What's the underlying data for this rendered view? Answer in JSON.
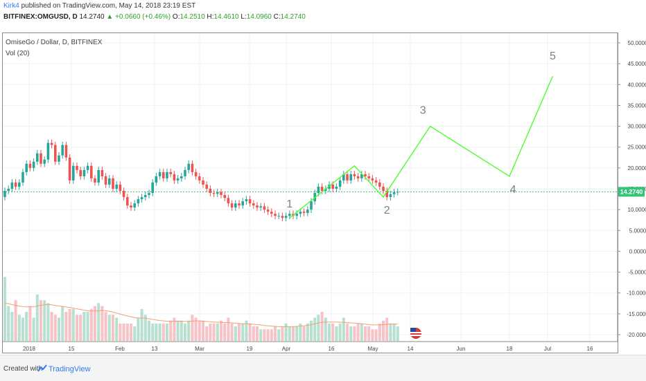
{
  "header": {
    "author": "Kirk4",
    "published": "published on TradingView.com, May 14, 2018 23:19 EST",
    "symbol": "BITFINEX:OMGUSD, D",
    "last": "14.2740",
    "change_arrow": "▲",
    "change": "+0.0660 (+0.46%)",
    "o_label": "O:",
    "o": "14.2510",
    "h_label": "H:",
    "h": "14.4610",
    "l_label": "L:",
    "l": "14.0960",
    "c_label": "C:",
    "c": "14.2740"
  },
  "legend": {
    "series": "OmiseGo / Dollar, D, BITFINEX",
    "indicator": "Vol (20)"
  },
  "footer": {
    "created_with": "Created with",
    "brand": "TradingView"
  },
  "colors": {
    "up": "#26a69a",
    "down": "#ef5350",
    "wave": "#4cff2e",
    "ma": "#f0a070",
    "grid": "#eef1f4",
    "axis_text": "#444444",
    "wave_label": "#7a7f86",
    "price_tag": "#33c47a"
  },
  "chart_data": {
    "type": "candlestick",
    "y_axis": {
      "ticks": [
        "50.0000",
        "45.0000",
        "40.0000",
        "35.0000",
        "30.0000",
        "25.0000",
        "20.0000",
        "15.0000",
        "10.0000",
        "5.0000",
        "0.0000",
        "-5.0000",
        "-10.0000",
        "-15.0000",
        "-20.0000"
      ],
      "range": [
        -20,
        50
      ]
    },
    "x_axis": {
      "ticks": [
        "2018",
        "15",
        "Feb",
        "13",
        "Mar",
        "19",
        "Apr",
        "16",
        "May",
        "14",
        "Jun",
        "18",
        "Jul",
        "16"
      ]
    },
    "current_price": "14.2740",
    "price_line": 14.274,
    "candles": [
      [
        13.0,
        14.5
      ],
      [
        14.5,
        15.0
      ],
      [
        15.0,
        16.5
      ],
      [
        16.5,
        15.5
      ],
      [
        15.5,
        16.5
      ],
      [
        16.5,
        19.0
      ],
      [
        19.0,
        21.0
      ],
      [
        21.0,
        20.0
      ],
      [
        20.0,
        21.5
      ],
      [
        21.5,
        23.5
      ],
      [
        23.5,
        21.0
      ],
      [
        21.0,
        22.0
      ],
      [
        22.0,
        26.0
      ],
      [
        26.0,
        25.5
      ],
      [
        25.5,
        21.5
      ],
      [
        21.5,
        23.0
      ],
      [
        23.0,
        25.5
      ],
      [
        25.5,
        22.5
      ],
      [
        22.5,
        17.0
      ],
      [
        17.0,
        20.5
      ],
      [
        20.5,
        19.5
      ],
      [
        19.5,
        18.0
      ],
      [
        18.0,
        19.5
      ],
      [
        19.5,
        20.5
      ],
      [
        20.5,
        17.5
      ],
      [
        17.5,
        16.5
      ],
      [
        16.5,
        19.5
      ],
      [
        19.5,
        18.0
      ],
      [
        18.0,
        16.0
      ],
      [
        16.0,
        17.5
      ],
      [
        17.5,
        15.0
      ],
      [
        15.0,
        16.0
      ],
      [
        16.0,
        14.5
      ],
      [
        14.5,
        13.0
      ],
      [
        13.0,
        11.0
      ],
      [
        11.0,
        10.5
      ],
      [
        10.5,
        11.5
      ],
      [
        11.5,
        12.5
      ],
      [
        12.5,
        13.0
      ],
      [
        13.0,
        13.5
      ],
      [
        13.5,
        14.0
      ],
      [
        14.0,
        16.5
      ],
      [
        16.5,
        18.0
      ],
      [
        18.0,
        19.0
      ],
      [
        19.0,
        17.5
      ],
      [
        17.5,
        19.0
      ],
      [
        19.0,
        18.5
      ],
      [
        18.5,
        17.0
      ],
      [
        17.0,
        17.5
      ],
      [
        17.5,
        18.0
      ],
      [
        18.0,
        19.5
      ],
      [
        19.5,
        21.0
      ],
      [
        21.0,
        19.0
      ],
      [
        19.0,
        18.0
      ],
      [
        18.0,
        17.0
      ],
      [
        17.0,
        16.0
      ],
      [
        16.0,
        15.0
      ],
      [
        15.0,
        14.0
      ],
      [
        14.0,
        13.8
      ],
      [
        13.8,
        14.2
      ],
      [
        14.2,
        13.5
      ],
      [
        13.5,
        12.8
      ],
      [
        12.8,
        11.5
      ],
      [
        11.5,
        10.5
      ],
      [
        10.5,
        11.5
      ],
      [
        11.5,
        11.0
      ],
      [
        11.0,
        12.0
      ],
      [
        12.0,
        12.5
      ],
      [
        12.5,
        11.5
      ],
      [
        11.5,
        11.0
      ],
      [
        11.0,
        10.5
      ],
      [
        10.5,
        10.8
      ],
      [
        10.8,
        10.0
      ],
      [
        10.0,
        9.5
      ],
      [
        9.5,
        9.0
      ],
      [
        9.0,
        8.5
      ],
      [
        8.5,
        8.5
      ],
      [
        8.5,
        8.0
      ],
      [
        8.0,
        8.5
      ],
      [
        8.5,
        9.0
      ],
      [
        9.0,
        8.5
      ],
      [
        8.5,
        9.0
      ],
      [
        9.0,
        9.5
      ],
      [
        9.5,
        9.2
      ],
      [
        9.2,
        10.0
      ],
      [
        10.0,
        12.0
      ],
      [
        12.0,
        14.0
      ],
      [
        14.0,
        15.5
      ],
      [
        15.5,
        14.5
      ],
      [
        14.5,
        15.0
      ],
      [
        15.0,
        16.0
      ],
      [
        16.0,
        15.0
      ],
      [
        15.0,
        15.5
      ],
      [
        15.5,
        17.0
      ],
      [
        17.0,
        18.5
      ],
      [
        18.5,
        17.0
      ],
      [
        17.0,
        18.5
      ],
      [
        18.5,
        18.0
      ],
      [
        18.0,
        17.5
      ],
      [
        17.5,
        18.5
      ],
      [
        18.5,
        18.0
      ],
      [
        18.0,
        17.5
      ],
      [
        17.5,
        17.0
      ],
      [
        17.0,
        16.5
      ],
      [
        16.5,
        15.5
      ],
      [
        15.5,
        14.5
      ],
      [
        14.5,
        13.0
      ],
      [
        13.0,
        13.7
      ],
      [
        13.7,
        14.2
      ],
      [
        14.2,
        14.27
      ]
    ],
    "volume": [
      22,
      12,
      10,
      14,
      9,
      8,
      10,
      12,
      8,
      16,
      14,
      14,
      13,
      10,
      9,
      8,
      12,
      10,
      11,
      11,
      9,
      9,
      10,
      10,
      11,
      12,
      13,
      12,
      10,
      9,
      9,
      8,
      6,
      6,
      6,
      6,
      5,
      8,
      11,
      9,
      7,
      6,
      6,
      6,
      6,
      6,
      7,
      8,
      7,
      7,
      6,
      7,
      9,
      8,
      7,
      7,
      5,
      6,
      6,
      6,
      7,
      6,
      8,
      6,
      5,
      6,
      6,
      7,
      6,
      5,
      5,
      4,
      4,
      4,
      4,
      5,
      4,
      5,
      6,
      5,
      5,
      5,
      6,
      5,
      6,
      7,
      8,
      9,
      10,
      8,
      6,
      6,
      5,
      6,
      8,
      6,
      5,
      5,
      6,
      6,
      5,
      5,
      4,
      4,
      6,
      7,
      8,
      6,
      6,
      5
    ],
    "volume_ma": [
      13,
      12.8,
      12.5,
      12.2,
      12,
      11.8,
      11.7,
      11.8,
      11.7,
      12,
      12.3,
      12.4,
      12.6,
      12.4,
      12.2,
      12,
      11.9,
      11.7,
      11.5,
      11.3,
      11,
      10.8,
      10.6,
      10.4,
      10.3,
      10.3,
      10.4,
      10.5,
      10.4,
      10.2,
      9.9,
      9.6,
      9.2,
      8.9,
      8.6,
      8.3,
      8,
      7.9,
      7.9,
      7.8,
      7.6,
      7.4,
      7.2,
      7,
      6.9,
      6.8,
      6.8,
      6.8,
      6.8,
      6.8,
      6.7,
      6.7,
      6.8,
      6.9,
      6.9,
      6.8,
      6.7,
      6.6,
      6.5,
      6.4,
      6.4,
      6.3,
      6.3,
      6.2,
      6.1,
      6,
      5.9,
      5.9,
      5.8,
      5.7,
      5.6,
      5.5,
      5.3,
      5.2,
      5.1,
      5,
      4.9,
      4.9,
      4.9,
      4.9,
      4.9,
      5,
      5.1,
      5.2,
      5.4,
      5.6,
      5.9,
      6.2,
      6.4,
      6.5,
      6.5,
      6.5,
      6.5,
      6.4,
      6.4,
      6.3,
      6.2,
      6.1,
      6,
      5.9,
      5.8,
      5.6,
      5.5,
      5.5,
      5.5,
      5.6,
      5.7,
      5.8,
      5.8,
      5.8
    ],
    "wave_path": [
      {
        "date_index": 79,
        "price": 8.0
      },
      {
        "date_index": 97,
        "price": 20.5
      },
      {
        "date_index": 105,
        "price": 13.0
      },
      {
        "date_index": 118,
        "price": 30.0
      },
      {
        "date_index": 140,
        "price": 18.0
      },
      {
        "date_index": 152,
        "price": 42.0
      }
    ],
    "wave_labels": [
      {
        "text": "1",
        "date_index": 79,
        "price": 10.5
      },
      {
        "text": "2",
        "date_index": 106,
        "price": 9.0
      },
      {
        "text": "3",
        "date_index": 116,
        "price": 33.0
      },
      {
        "text": "4",
        "date_index": 141,
        "price": 14.0
      },
      {
        "text": "5",
        "date_index": 152,
        "price": 46.0
      }
    ]
  }
}
